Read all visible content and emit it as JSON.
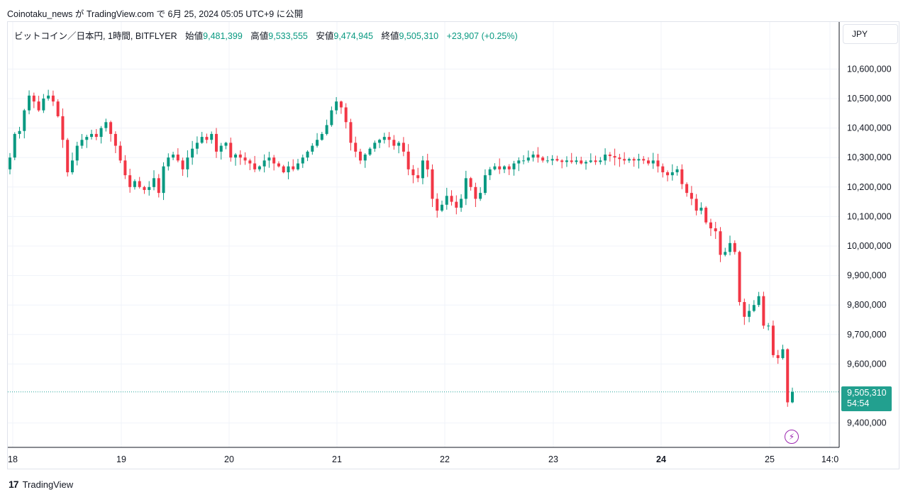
{
  "caption": "Coinotaku_news が TradingView.com で 6月 25, 2024 05:05 UTC+9 に公開",
  "legend": {
    "symbol": "ビットコイン／日本円, 1時間, BITFLYER",
    "open_label": "始値",
    "open": "9,481,399",
    "high_label": "高値",
    "high": "9,533,555",
    "low_label": "安値",
    "low": "9,474,945",
    "close_label": "終値",
    "close": "9,505,310",
    "change": "+23,907 (+0.25%)"
  },
  "currency": "JPY",
  "last_price": {
    "price": "9,505,310",
    "countdown": "54:54"
  },
  "brand": {
    "logo": "17",
    "name": "TradingView"
  },
  "colors": {
    "up": "#089981",
    "down": "#f23645",
    "grid": "#f0f3fa",
    "axis": "#131722",
    "price_box": "#22a08f",
    "lightning": "#9c27b0"
  },
  "icons": {
    "lightning": "lightning-icon"
  },
  "chart_data": {
    "type": "candlestick",
    "interval": "1時間",
    "y_ticks": [
      "10,600,000",
      "10,500,000",
      "10,400,000",
      "10,300,000",
      "10,200,000",
      "10,100,000",
      "10,000,000",
      "9,900,000",
      "9,800,000",
      "9,700,000",
      "9,600,000",
      "9,400,000"
    ],
    "y_tick_values": [
      10600000,
      10500000,
      10400000,
      10300000,
      10200000,
      10100000,
      10000000,
      9900000,
      9800000,
      9700000,
      9600000,
      9400000
    ],
    "x_ticks": [
      "18",
      "19",
      "20",
      "21",
      "22",
      "23",
      "24",
      "25",
      "14:0"
    ],
    "x_ticks_bold": [
      "24"
    ],
    "ylim": [
      9330000,
      10700000
    ],
    "grid": true,
    "closes": [
      10300000,
      10380000,
      10390000,
      10460000,
      10510000,
      10490000,
      10460000,
      10500000,
      10510000,
      10490000,
      10440000,
      10360000,
      10250000,
      10290000,
      10340000,
      10360000,
      10370000,
      10380000,
      10370000,
      10400000,
      10420000,
      10380000,
      10340000,
      10290000,
      10240000,
      10200000,
      10220000,
      10200000,
      10190000,
      10200000,
      10230000,
      10180000,
      10270000,
      10300000,
      10310000,
      10290000,
      10260000,
      10300000,
      10330000,
      10350000,
      10370000,
      10360000,
      10380000,
      10320000,
      10340000,
      10350000,
      10300000,
      10310000,
      10300000,
      10290000,
      10280000,
      10260000,
      10270000,
      10290000,
      10300000,
      10280000,
      10270000,
      10250000,
      10270000,
      10260000,
      10280000,
      10300000,
      10320000,
      10340000,
      10360000,
      10380000,
      10410000,
      10460000,
      10490000,
      10470000,
      10420000,
      10350000,
      10320000,
      10290000,
      10310000,
      10330000,
      10350000,
      10360000,
      10370000,
      10360000,
      10340000,
      10350000,
      10320000,
      10260000,
      10240000,
      10230000,
      10290000,
      10260000,
      10160000,
      10120000,
      10140000,
      10170000,
      10150000,
      10130000,
      10160000,
      10230000,
      10200000,
      10160000,
      10180000,
      10240000,
      10260000,
      10270000,
      10260000,
      10270000,
      10260000,
      10280000,
      10290000,
      10290000,
      10300000,
      10310000,
      10300000,
      10290000,
      10290000,
      10295000,
      10290000,
      10285000,
      10290000,
      10285000,
      10290000,
      10280000,
      10285000,
      10290000,
      10285000,
      10290000,
      10310000,
      10305000,
      10300000,
      10295000,
      10290000,
      10295000,
      10290000,
      10295000,
      10290000,
      10280000,
      10290000,
      10270000,
      10250000,
      10240000,
      10250000,
      10260000,
      10210000,
      10180000,
      10160000,
      10120000,
      10130000,
      10080000,
      10060000,
      10050000,
      9970000,
      9980000,
      10010000,
      9980000,
      9810000,
      9760000,
      9780000,
      9800000,
      9830000,
      9730000,
      9730000,
      9630000,
      9620000,
      9650000,
      9470000,
      9505310
    ]
  }
}
